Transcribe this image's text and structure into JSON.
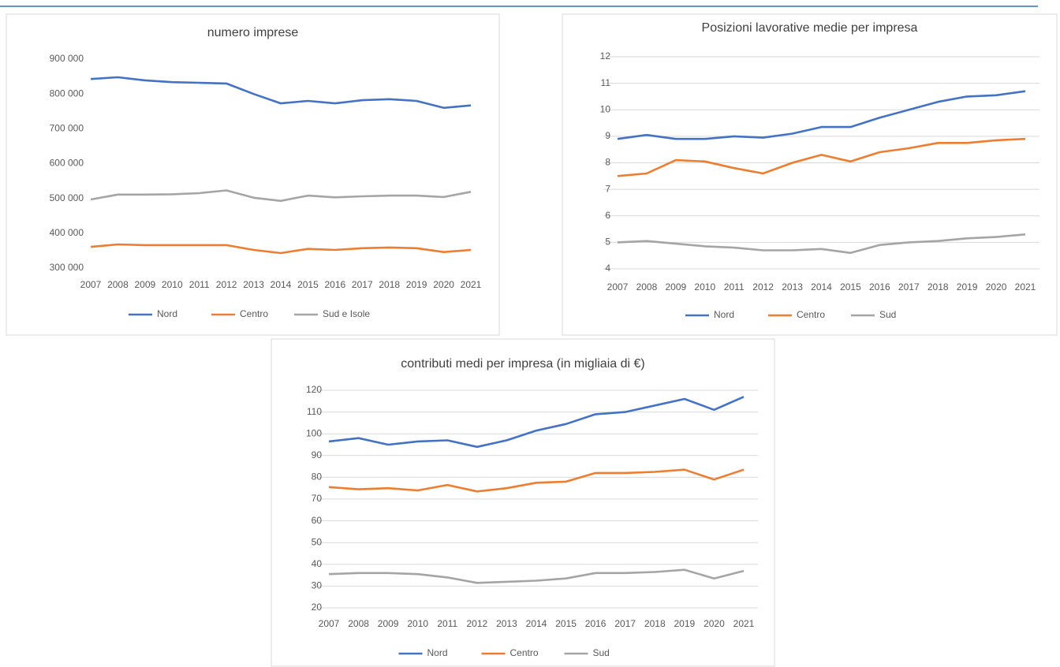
{
  "chart_data": [
    {
      "type": "line",
      "title": "numero imprese",
      "categories": [
        "2007",
        "2008",
        "2009",
        "2010",
        "2011",
        "2012",
        "2013",
        "2014",
        "2015",
        "2016",
        "2017",
        "2018",
        "2019",
        "2020",
        "2021"
      ],
      "series": [
        {
          "name": "Nord",
          "color": "#4472c4",
          "values": [
            843000,
            848000,
            839000,
            834000,
            832000,
            830000,
            800000,
            773000,
            780000,
            773000,
            782000,
            785000,
            780000,
            760000,
            767000
          ]
        },
        {
          "name": "Centro",
          "color": "#ed7d31",
          "values": [
            361000,
            368000,
            366000,
            366000,
            366000,
            366000,
            352000,
            343000,
            355000,
            352000,
            357000,
            359000,
            357000,
            346000,
            352000
          ]
        },
        {
          "name": "Sud e Isole",
          "color": "#a5a5a5",
          "values": [
            497000,
            511000,
            511000,
            512000,
            515000,
            523000,
            502000,
            493000,
            508000,
            503000,
            506000,
            508000,
            508000,
            504000,
            519000
          ]
        }
      ],
      "ylim": [
        300000,
        900000
      ],
      "yticks": [
        {
          "value": 300000,
          "label": "300 000"
        },
        {
          "value": 400000,
          "label": "400 000"
        },
        {
          "value": 500000,
          "label": "500 000"
        },
        {
          "value": 600000,
          "label": "600 000"
        },
        {
          "value": 700000,
          "label": "700 000"
        },
        {
          "value": 800000,
          "label": "800 000"
        },
        {
          "value": 900000,
          "label": "900 000"
        }
      ],
      "grid": false,
      "legend": "bottom"
    },
    {
      "type": "line",
      "title": "Posizioni lavorative medie per impresa",
      "categories": [
        "2007",
        "2008",
        "2009",
        "2010",
        "2011",
        "2012",
        "2013",
        "2014",
        "2015",
        "2016",
        "2017",
        "2018",
        "2019",
        "2020",
        "2021"
      ],
      "series": [
        {
          "name": "Nord",
          "color": "#4472c4",
          "values": [
            8.9,
            9.05,
            8.9,
            8.9,
            9.0,
            8.95,
            9.1,
            9.35,
            9.35,
            9.7,
            10.0,
            10.3,
            10.5,
            10.55,
            10.7
          ]
        },
        {
          "name": "Centro",
          "color": "#ed7d31",
          "values": [
            7.5,
            7.6,
            8.1,
            8.05,
            7.8,
            7.6,
            8.0,
            8.3,
            8.05,
            8.4,
            8.55,
            8.75,
            8.75,
            8.85,
            8.9
          ]
        },
        {
          "name": "Sud",
          "color": "#a5a5a5",
          "values": [
            5.0,
            5.05,
            4.95,
            4.85,
            4.8,
            4.7,
            4.7,
            4.75,
            4.6,
            4.9,
            5.0,
            5.05,
            5.15,
            5.2,
            5.3
          ]
        }
      ],
      "ylim": [
        4,
        12
      ],
      "yticks": [
        4,
        5,
        6,
        7,
        8,
        9,
        10,
        11,
        12
      ],
      "grid": true,
      "legend": "bottom"
    },
    {
      "type": "line",
      "title": "contributi medi per impresa (in migliaia di €)",
      "categories": [
        "2007",
        "2008",
        "2009",
        "2010",
        "2011",
        "2012",
        "2013",
        "2014",
        "2015",
        "2016",
        "2017",
        "2018",
        "2019",
        "2020",
        "2021"
      ],
      "series": [
        {
          "name": "Nord",
          "color": "#4472c4",
          "values": [
            96.5,
            98,
            95,
            96.5,
            97,
            94,
            97,
            101.5,
            104.5,
            109,
            110,
            113,
            116,
            111,
            117
          ]
        },
        {
          "name": "Centro",
          "color": "#ed7d31",
          "values": [
            75.5,
            74.5,
            75,
            74,
            76.5,
            73.5,
            75,
            77.5,
            78,
            82,
            82,
            82.5,
            83.5,
            79,
            83.5
          ]
        },
        {
          "name": "Sud",
          "color": "#a5a5a5",
          "values": [
            35.5,
            36,
            36,
            35.5,
            34,
            31.5,
            32,
            32.5,
            33.5,
            36,
            36,
            36.5,
            37.5,
            33.5,
            37
          ]
        }
      ],
      "ylim": [
        20,
        120
      ],
      "yticks": [
        20,
        30,
        40,
        50,
        60,
        70,
        80,
        90,
        100,
        110,
        120
      ],
      "grid": true,
      "legend": "bottom"
    }
  ]
}
